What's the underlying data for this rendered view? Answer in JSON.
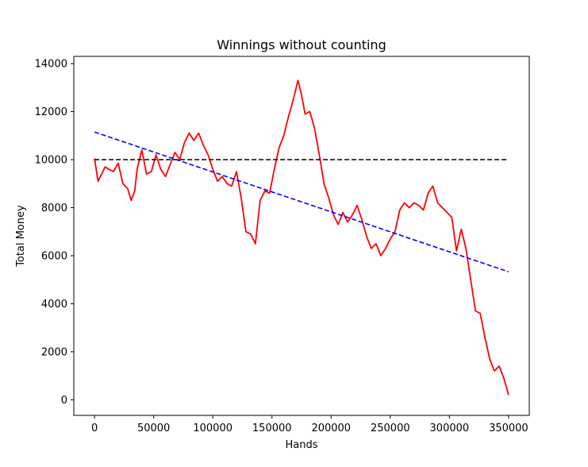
{
  "chart_data": {
    "type": "line",
    "title": "Winnings without counting",
    "xlabel": "Hands",
    "ylabel": "Total Money",
    "xlim": [
      -17500,
      367500
    ],
    "ylim": [
      -650,
      14300
    ],
    "xticks": [
      0,
      50000,
      100000,
      150000,
      200000,
      250000,
      300000,
      350000
    ],
    "xtick_labels": [
      "0",
      "50000",
      "100000",
      "150000",
      "200000",
      "250000",
      "300000",
      "350000"
    ],
    "yticks": [
      0,
      2000,
      4000,
      6000,
      8000,
      10000,
      12000,
      14000
    ],
    "ytick_labels": [
      "0",
      "2000",
      "4000",
      "6000",
      "8000",
      "10000",
      "12000",
      "14000"
    ],
    "grid": false,
    "series": [
      {
        "style": "solid",
        "color": "#ff0000",
        "x": [
          0,
          3000,
          6000,
          9000,
          12000,
          16000,
          20000,
          24000,
          28000,
          31000,
          34000,
          36000,
          40000,
          44000,
          48000,
          52000,
          56000,
          60000,
          64000,
          68000,
          72000,
          76000,
          80000,
          84000,
          88000,
          92000,
          96000,
          100000,
          104000,
          108000,
          112000,
          116000,
          120000,
          124000,
          128000,
          132000,
          136000,
          140000,
          144000,
          148000,
          152000,
          156000,
          160000,
          164000,
          168000,
          172000,
          175000,
          178000,
          182000,
          186000,
          190000,
          194000,
          198000,
          202000,
          206000,
          210000,
          214000,
          218000,
          222000,
          226000,
          230000,
          234000,
          238000,
          242000,
          246000,
          250000,
          254000,
          258000,
          262000,
          266000,
          270000,
          274000,
          278000,
          282000,
          286000,
          290000,
          294000,
          298000,
          302000,
          306000,
          310000,
          314000,
          318000,
          322000,
          326000,
          330000,
          334000,
          338000,
          342000,
          346000,
          350000
        ],
        "y": [
          10050,
          9100,
          9400,
          9700,
          9600,
          9500,
          9850,
          9000,
          8800,
          8300,
          8700,
          9600,
          10400,
          9400,
          9500,
          10200,
          9600,
          9300,
          9800,
          10300,
          10000,
          10700,
          11100,
          10800,
          11100,
          10600,
          10200,
          9600,
          9100,
          9300,
          9000,
          8900,
          9500,
          8400,
          7000,
          6900,
          6500,
          8300,
          8700,
          8600,
          9600,
          10500,
          11000,
          11800,
          12500,
          13300,
          12700,
          11900,
          12000,
          11300,
          10200,
          9000,
          8400,
          7700,
          7300,
          7800,
          7400,
          7700,
          8100,
          7500,
          6800,
          6300,
          6500,
          6000,
          6300,
          6700,
          7000,
          7900,
          8200,
          8000,
          8200,
          8100,
          7900,
          8600,
          8900,
          8200,
          8000,
          7800,
          7600,
          6200,
          7100,
          6300,
          5000,
          3700,
          3600,
          2600,
          1700,
          1200,
          1400,
          900,
          200
        ]
      },
      {
        "style": "dashed",
        "color": "#000000",
        "x": [
          0,
          350000
        ],
        "y": [
          10000,
          10000
        ]
      },
      {
        "style": "dashed",
        "color": "#0000ff",
        "x": [
          0,
          350000
        ],
        "y": [
          11150,
          5330
        ]
      }
    ]
  }
}
